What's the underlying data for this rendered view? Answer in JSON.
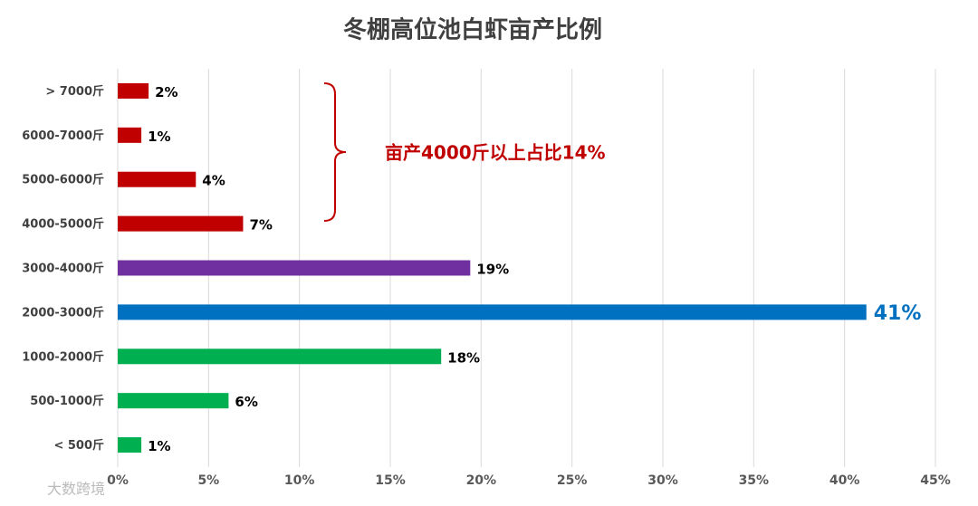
{
  "chart_data": {
    "type": "bar",
    "orientation": "horizontal",
    "title": "冬棚高位池白虾亩产比例",
    "categories": [
      "> 7000斤",
      "6000-7000斤",
      "5000-6000斤",
      "4000-5000斤",
      "3000-4000斤",
      "2000-3000斤",
      "1000-2000斤",
      "500-1000斤",
      "< 500斤"
    ],
    "values": [
      1.7,
      1.3,
      4.3,
      6.9,
      19.4,
      41.2,
      17.8,
      6.1,
      1.3
    ],
    "value_labels": [
      "2%",
      "1%",
      "4%",
      "7%",
      "19%",
      "41%",
      "18%",
      "6%",
      "1%"
    ],
    "colors": [
      "#c00000",
      "#c00000",
      "#c00000",
      "#c00000",
      "#7030a0",
      "#0070c0",
      "#00b050",
      "#00b050",
      "#00b050"
    ],
    "xlim": [
      0,
      45
    ],
    "xticks": [
      {
        "value": 0,
        "label": "0%"
      },
      {
        "value": 5,
        "label": "5%"
      },
      {
        "value": 10,
        "label": "10%"
      },
      {
        "value": 15,
        "label": "15%"
      },
      {
        "value": 20,
        "label": "20%"
      },
      {
        "value": 25,
        "label": "25%"
      },
      {
        "value": 30,
        "label": "30%"
      },
      {
        "value": 35,
        "label": "35%"
      },
      {
        "value": 40,
        "label": "40%"
      },
      {
        "value": 45,
        "label": "45%"
      }
    ],
    "grid": true,
    "annotation": "亩产4000斤以上占比14%",
    "watermark": "大数跨境"
  }
}
